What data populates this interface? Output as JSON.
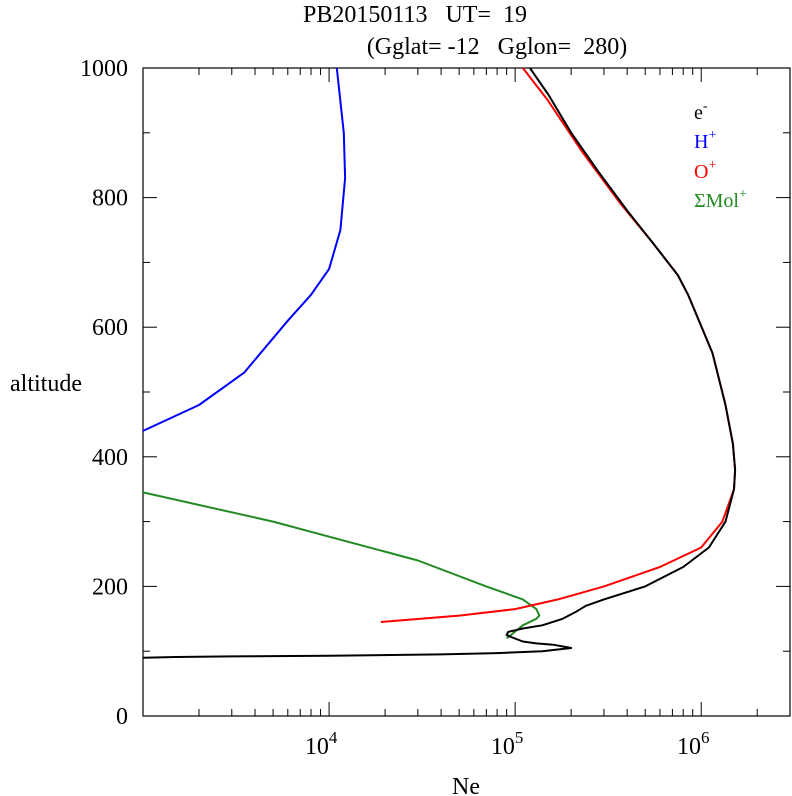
{
  "chart_data": {
    "type": "line",
    "title_line1": "PB20150113   UT=  19",
    "title_line2": "(Gglat= -12   Gglon=  280)",
    "xlabel": "Ne",
    "ylabel": "altitude",
    "x_scale": "log",
    "xlim": [
      1000,
      3000000
    ],
    "ylim": [
      0,
      1000
    ],
    "x_tick_labels": [
      {
        "base": "10",
        "exp": "4",
        "value": 10000
      },
      {
        "base": "10",
        "exp": "5",
        "value": 100000
      },
      {
        "base": "10",
        "exp": "6",
        "value": 1000000
      }
    ],
    "y_tick_labels": [
      "0",
      "200",
      "400",
      "600",
      "800",
      "1000"
    ],
    "y_ticks": [
      0,
      200,
      400,
      600,
      800,
      1000
    ],
    "legend_position": "top-right",
    "series": [
      {
        "name": "e",
        "name_sup": "-",
        "color": "#000000",
        "points": [
          [
            1000,
            90
          ],
          [
            1500,
            91
          ],
          [
            3000,
            92
          ],
          [
            10000,
            93
          ],
          [
            40000,
            95
          ],
          [
            80000,
            97
          ],
          [
            140000,
            100
          ],
          [
            200000,
            105
          ],
          [
            160000,
            110
          ],
          [
            130000,
            112
          ],
          [
            110000,
            115
          ],
          [
            95000,
            122
          ],
          [
            90000,
            125
          ],
          [
            92000,
            130
          ],
          [
            110000,
            135
          ],
          [
            140000,
            140
          ],
          [
            180000,
            150
          ],
          [
            210000,
            160
          ],
          [
            240000,
            170
          ],
          [
            300000,
            180
          ],
          [
            500000,
            200
          ],
          [
            800000,
            230
          ],
          [
            1100000,
            260
          ],
          [
            1350000,
            300
          ],
          [
            1500000,
            350
          ],
          [
            1520000,
            380
          ],
          [
            1480000,
            420
          ],
          [
            1350000,
            480
          ],
          [
            1150000,
            560
          ],
          [
            850000,
            650
          ],
          [
            750000,
            680
          ],
          [
            550000,
            730
          ],
          [
            400000,
            780
          ],
          [
            280000,
            840
          ],
          [
            200000,
            900
          ],
          [
            150000,
            960
          ],
          [
            120000,
            1000
          ]
        ]
      },
      {
        "name": "H",
        "name_sup": "+",
        "color": "#0000ff",
        "points": [
          [
            1000,
            440
          ],
          [
            2000,
            480
          ],
          [
            3500,
            530
          ],
          [
            6000,
            610
          ],
          [
            8000,
            650
          ],
          [
            10000,
            690
          ],
          [
            11500,
            750
          ],
          [
            12200,
            830
          ],
          [
            12000,
            900
          ],
          [
            11000,
            1000
          ]
        ]
      },
      {
        "name": "O",
        "name_sup": "+",
        "color": "#ff0000",
        "points": [
          [
            19000,
            145
          ],
          [
            50000,
            155
          ],
          [
            100000,
            165
          ],
          [
            170000,
            180
          ],
          [
            300000,
            200
          ],
          [
            600000,
            230
          ],
          [
            1000000,
            260
          ],
          [
            1300000,
            300
          ],
          [
            1500000,
            350
          ],
          [
            1520000,
            380
          ],
          [
            1480000,
            420
          ],
          [
            1350000,
            480
          ],
          [
            1150000,
            560
          ],
          [
            850000,
            650
          ],
          [
            750000,
            680
          ],
          [
            550000,
            730
          ],
          [
            370000,
            790
          ],
          [
            230000,
            870
          ],
          [
            150000,
            950
          ],
          [
            110000,
            1000
          ]
        ]
      },
      {
        "name": "ΣMol",
        "name_sup": "+",
        "color": "#228b22",
        "points": [
          [
            1000,
            345
          ],
          [
            5000,
            300
          ],
          [
            30000,
            240
          ],
          [
            70000,
            200
          ],
          [
            110000,
            180
          ],
          [
            130000,
            165
          ],
          [
            135000,
            155
          ],
          [
            130000,
            150
          ],
          [
            110000,
            140
          ],
          [
            95000,
            125
          ],
          [
            90000,
            120
          ]
        ]
      }
    ]
  }
}
